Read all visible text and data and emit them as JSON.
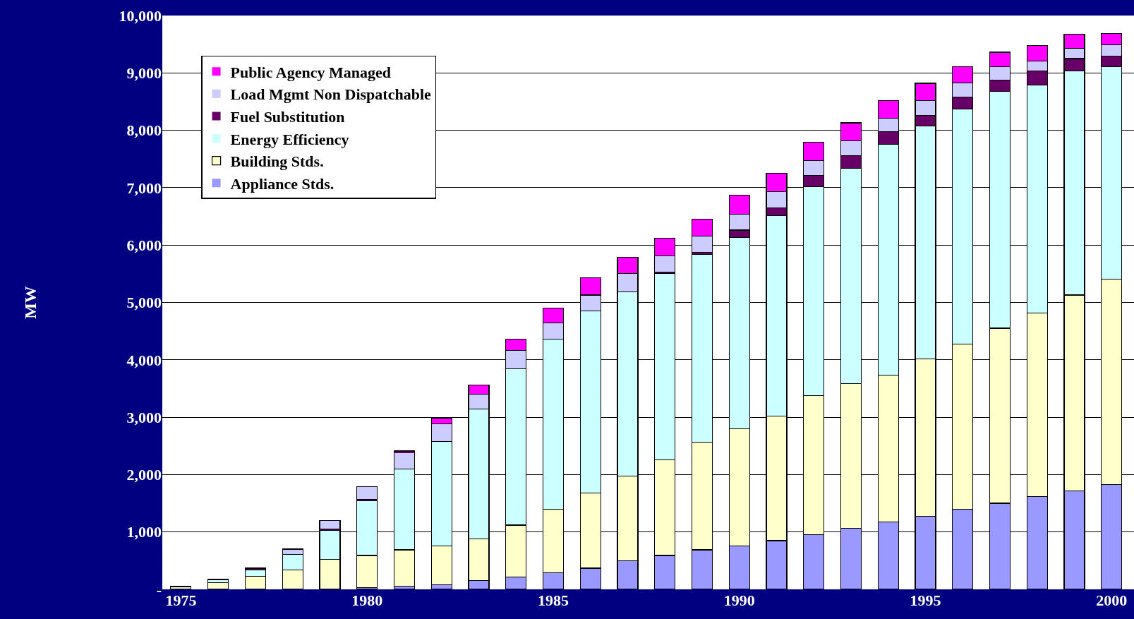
{
  "chart_data": {
    "type": "bar",
    "stacked": true,
    "ylabel": "MW",
    "x": [
      1975,
      1976,
      1977,
      1978,
      1979,
      1980,
      1981,
      1982,
      1983,
      1984,
      1985,
      1986,
      1987,
      1988,
      1989,
      1990,
      1991,
      1992,
      1993,
      1994,
      1995,
      1996,
      1997,
      1998,
      1999,
      2000
    ],
    "series": [
      {
        "name": "Appliance Stds.",
        "color": "#9999ff",
        "values": [
          0,
          0,
          0,
          0,
          0,
          30,
          60,
          80,
          150,
          220,
          290,
          370,
          500,
          590,
          690,
          760,
          850,
          950,
          1060,
          1170,
          1270,
          1400,
          1500,
          1620,
          1720,
          1830
        ]
      },
      {
        "name": "Building Stds.",
        "color": "#ffffcc",
        "values": [
          50,
          120,
          230,
          340,
          520,
          560,
          630,
          680,
          730,
          900,
          1110,
          1310,
          1470,
          1670,
          1870,
          2040,
          2170,
          2430,
          2530,
          2560,
          2750,
          2870,
          3050,
          3200,
          3410,
          3580
        ]
      },
      {
        "name": "Energy Efficiency",
        "color": "#ccffff",
        "values": [
          0,
          50,
          110,
          270,
          510,
          950,
          1410,
          1820,
          2260,
          2720,
          2960,
          3170,
          3210,
          3240,
          3280,
          3330,
          3490,
          3640,
          3750,
          4030,
          4060,
          4100,
          4130,
          3970,
          3900,
          3700
        ]
      },
      {
        "name": "Fuel Substitution",
        "color": "#660066",
        "values": [
          0,
          0,
          20,
          0,
          20,
          30,
          0,
          0,
          0,
          0,
          0,
          0,
          0,
          30,
          30,
          130,
          140,
          190,
          220,
          220,
          180,
          210,
          190,
          240,
          220,
          180
        ]
      },
      {
        "name": "Load Mgmt Non Dispatchable",
        "color": "#ccccff",
        "values": [
          0,
          10,
          10,
          90,
          150,
          220,
          280,
          300,
          260,
          320,
          280,
          280,
          320,
          280,
          290,
          280,
          280,
          260,
          260,
          230,
          260,
          250,
          240,
          180,
          180,
          200
        ]
      },
      {
        "name": "Public Agency Managed",
        "color": "#ff00ff",
        "values": [
          0,
          0,
          0,
          0,
          0,
          0,
          30,
          100,
          160,
          200,
          260,
          300,
          290,
          310,
          290,
          330,
          320,
          320,
          310,
          310,
          300,
          280,
          250,
          270,
          240,
          200
        ]
      }
    ],
    "xlim": [
      1974.5,
      2000.6
    ],
    "xticks": [
      1975,
      1980,
      1985,
      1990,
      1995,
      2000
    ],
    "ylim": [
      0,
      10000
    ],
    "yticks": [
      {
        "value": 0,
        "label": "-"
      },
      {
        "value": 1000,
        "label": "1,000"
      },
      {
        "value": 2000,
        "label": "2,000"
      },
      {
        "value": 3000,
        "label": "3,000"
      },
      {
        "value": 4000,
        "label": "4,000"
      },
      {
        "value": 5000,
        "label": "5,000"
      },
      {
        "value": 6000,
        "label": "6,000"
      },
      {
        "value": 7000,
        "label": "7,000"
      },
      {
        "value": 8000,
        "label": "8,000"
      },
      {
        "value": 9000,
        "label": "9,000"
      },
      {
        "value": 10000,
        "label": "10,000"
      }
    ],
    "grid": "y",
    "legend": "top left"
  }
}
